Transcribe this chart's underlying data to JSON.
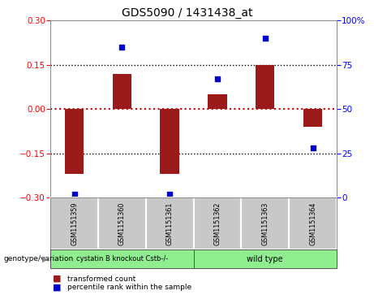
{
  "title": "GDS5090 / 1431438_at",
  "samples": [
    "GSM1151359",
    "GSM1151360",
    "GSM1151361",
    "GSM1151362",
    "GSM1151363",
    "GSM1151364"
  ],
  "transformed_counts": [
    -0.22,
    0.12,
    -0.22,
    0.05,
    0.15,
    -0.06
  ],
  "percentile_ranks": [
    2,
    85,
    2,
    67,
    90,
    28
  ],
  "ylim_left": [
    -0.3,
    0.3
  ],
  "ylim_right": [
    0,
    100
  ],
  "bar_color": "#9b1a1a",
  "dot_color": "#0000cc",
  "yticks_left": [
    -0.3,
    -0.15,
    0,
    0.15,
    0.3
  ],
  "yticks_right": [
    0,
    25,
    50,
    75,
    100
  ],
  "hline_color": "#cc0000",
  "dotted_color": "black",
  "dotted_hlines": [
    -0.15,
    0.15
  ],
  "group1_label": "cystatin B knockout Cstb-/-",
  "group2_label": "wild type",
  "group1_color": "#90ee90",
  "group2_color": "#90ee90",
  "sample_box_color": "#c8c8c8",
  "legend_red_label": "transformed count",
  "legend_blue_label": "percentile rank within the sample",
  "genotype_label": "genotype/variation",
  "bar_width": 0.4,
  "background_color": "#ffffff"
}
